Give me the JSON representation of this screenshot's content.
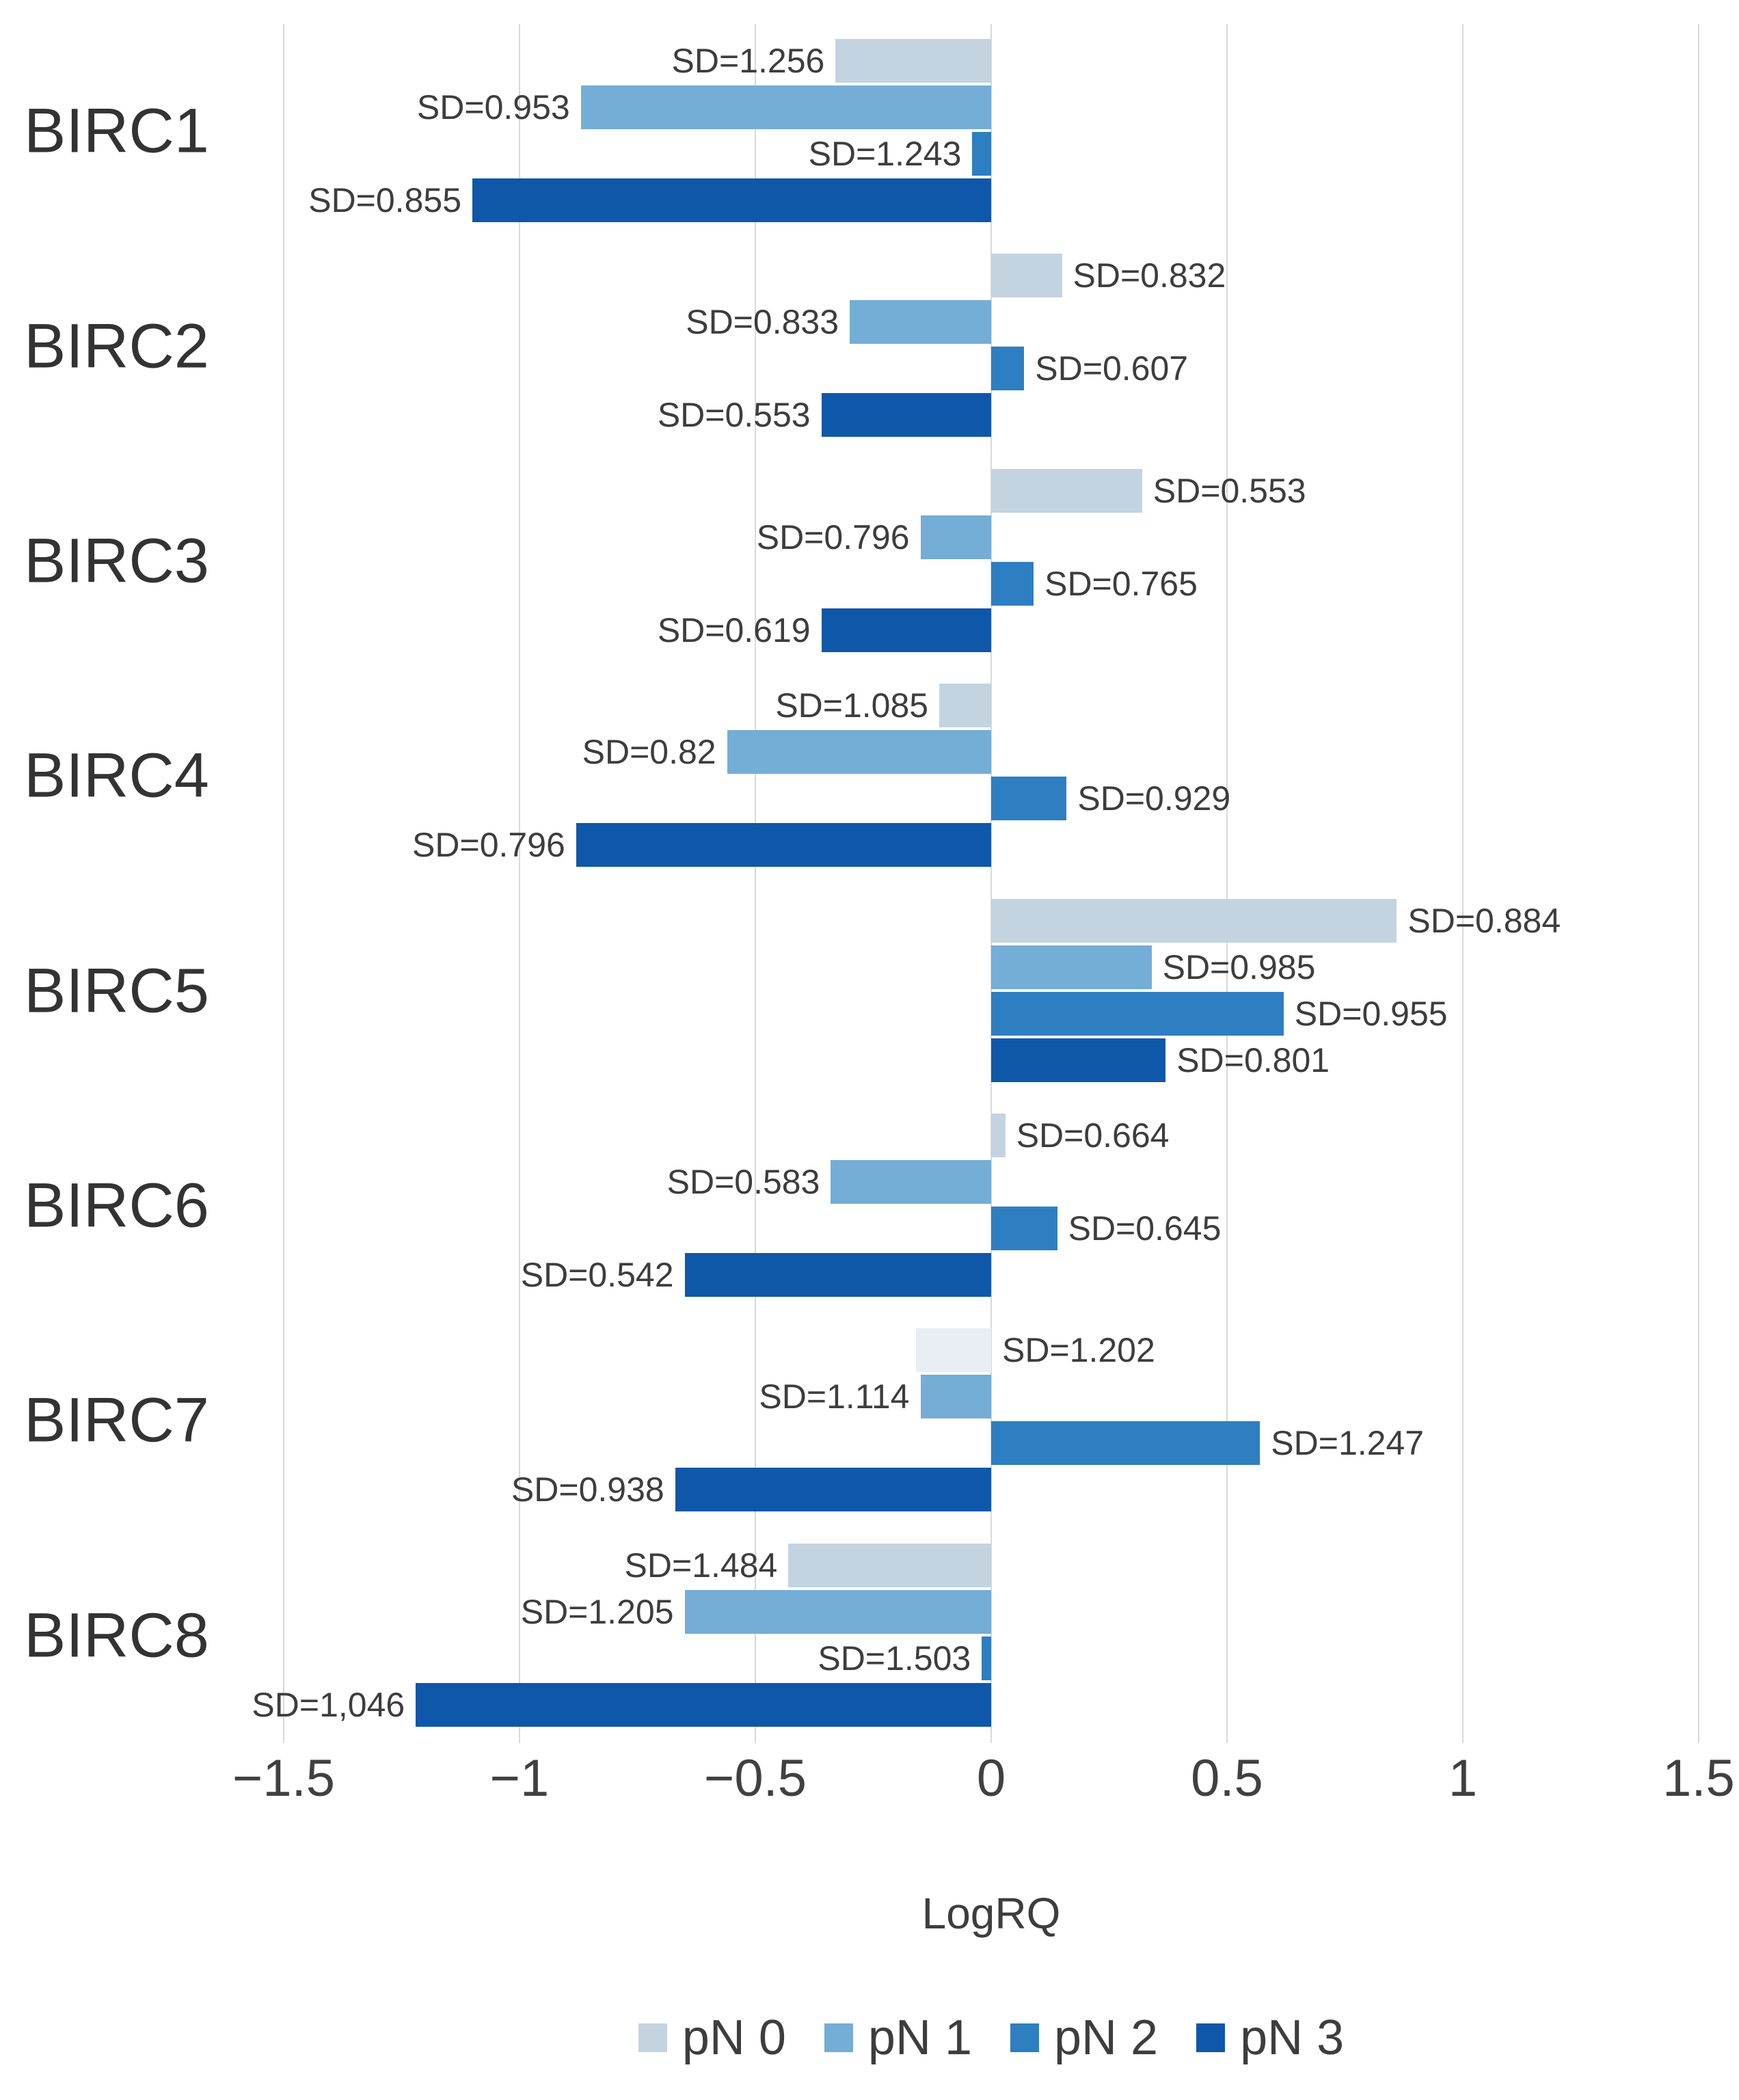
{
  "chart_data": {
    "type": "bar",
    "orientation": "horizontal",
    "title": "",
    "xlabel": "LogRQ",
    "ylabel": "",
    "xlim": [
      -1.5,
      1.5
    ],
    "x_ticks": [
      {
        "value": -1.5,
        "label": "−1.5"
      },
      {
        "value": -1.0,
        "label": "−1"
      },
      {
        "value": -0.5,
        "label": "−0.5"
      },
      {
        "value": 0.0,
        "label": "0"
      },
      {
        "value": 0.5,
        "label": "0.5"
      },
      {
        "value": 1.0,
        "label": "1"
      },
      {
        "value": 1.5,
        "label": "1.5"
      }
    ],
    "grid": "vertical",
    "legend_position": "bottom",
    "categories": [
      "BIRC1",
      "BIRC2",
      "BIRC3",
      "BIRC4",
      "BIRC5",
      "BIRC6",
      "BIRC7",
      "BIRC8"
    ],
    "series": [
      {
        "name": "pN 0",
        "color": "#c3d4e0",
        "values": [
          -0.33,
          0.15,
          0.32,
          -0.11,
          0.86,
          0.03,
          -0.16,
          -0.43
        ],
        "bar_labels": [
          "SD=1.256",
          "SD=0.832",
          "SD=0.553",
          "SD=1.085",
          "SD=0.884",
          "SD=0.664",
          "SD=1.202",
          "SD=1.484"
        ]
      },
      {
        "name": "pN 1",
        "color": "#74add5",
        "values": [
          -0.87,
          -0.3,
          -0.15,
          -0.56,
          0.34,
          -0.34,
          -0.15,
          -0.65
        ],
        "bar_labels": [
          "SD=0.953",
          "SD=0.833",
          "SD=0.796",
          "SD=0.82",
          "SD=0.985",
          "SD=0.583",
          "SD=1.114",
          "SD=1.205"
        ]
      },
      {
        "name": "pN 2",
        "color": "#2e7fc1",
        "values": [
          -0.04,
          0.07,
          0.09,
          0.16,
          0.62,
          0.14,
          0.57,
          -0.02
        ],
        "bar_labels": [
          "SD=1.243",
          "SD=0.607",
          "SD=0.765",
          "SD=0.929",
          "SD=0.955",
          "SD=0.645",
          "SD=1.247",
          "SD=1.503"
        ]
      },
      {
        "name": "pN 3",
        "color": "#0f57a8",
        "values": [
          -1.1,
          -0.36,
          -0.36,
          -0.88,
          0.37,
          -0.65,
          -0.67,
          -1.22
        ],
        "bar_labels": [
          "SD=0.855",
          "SD=0.553",
          "SD=0.619",
          "SD=0.796",
          "SD=0.801",
          "SD=0.542",
          "SD=0.938",
          "SD=1,046"
        ]
      }
    ],
    "bar_overrides": [
      {
        "category_index": 6,
        "series_index": 0,
        "color": "#e9eef4",
        "label_side": "right"
      }
    ]
  },
  "style": {
    "gridline_color": "#d9d9d9",
    "text_color": "#3d3d3d"
  }
}
